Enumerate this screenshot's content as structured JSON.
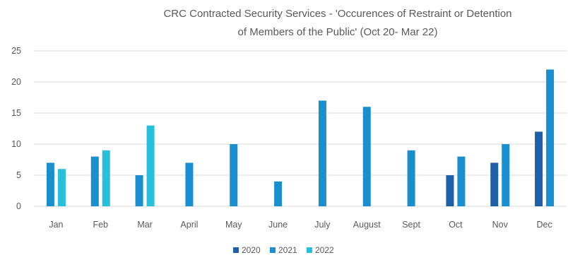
{
  "chart_data": {
    "type": "bar",
    "title_lines": [
      "CRC Contracted Security Services - 'Occurences of Restraint or Detention",
      "of Members of the Public' (Oct 20- Mar 22)"
    ],
    "categories": [
      "Jan",
      "Feb",
      "Mar",
      "April",
      "May",
      "June",
      "July",
      "August",
      "Sept",
      "Oct",
      "Nov",
      "Dec"
    ],
    "series": [
      {
        "name": "2020",
        "color": "#1f5fa8",
        "values": [
          null,
          null,
          null,
          null,
          null,
          null,
          null,
          null,
          null,
          5,
          7,
          12
        ]
      },
      {
        "name": "2021",
        "color": "#1a8fd0",
        "values": [
          7,
          8,
          5,
          7,
          10,
          4,
          17,
          16,
          9,
          8,
          10,
          22
        ]
      },
      {
        "name": "2022",
        "color": "#27c0dc",
        "values": [
          6,
          9,
          13,
          null,
          null,
          null,
          null,
          null,
          null,
          null,
          null,
          null
        ]
      }
    ],
    "ylim": [
      0,
      25
    ],
    "yticks": [
      0,
      5,
      10,
      15,
      20,
      25
    ],
    "grid": true,
    "legend_position": "bottom"
  }
}
